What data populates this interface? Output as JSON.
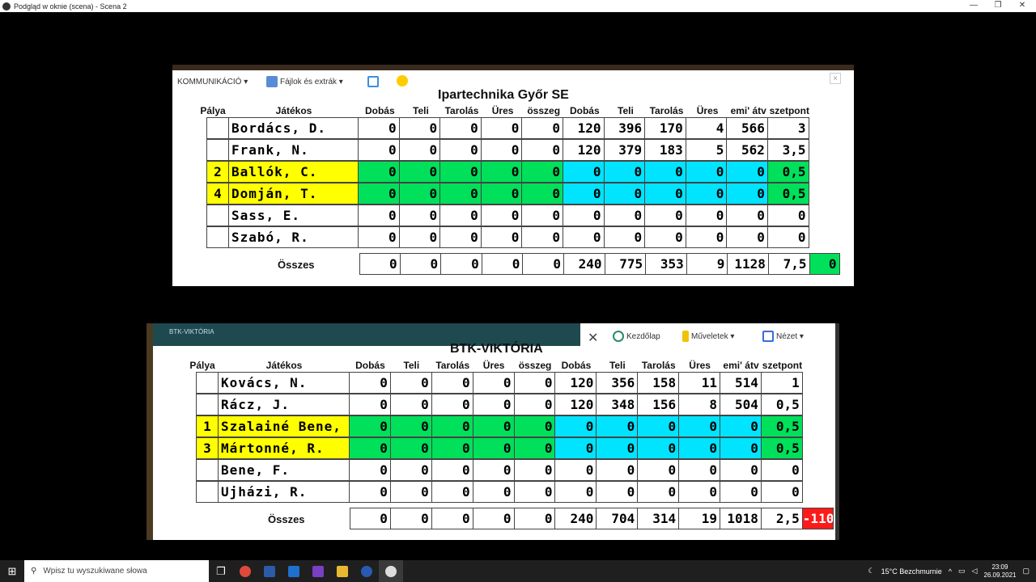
{
  "window": {
    "title": "Podgląd w oknie (scena) - Scena 2",
    "controls": [
      "—",
      "❐",
      "✕"
    ]
  },
  "toolbar1": {
    "kommunikacio": "KOMMUNIKÁCIÓ ▾",
    "fajlok": "Fájlok és extrák ▾"
  },
  "toolbar2": {
    "tab": "BTK-VIKTÓRIA",
    "kezdolap": "Kezdőlap",
    "muveletek": "Műveletek ▾",
    "nezet": "Nézet ▾"
  },
  "headers": {
    "palya": "Pálya",
    "jatekos": "Játékos",
    "cols": [
      "Dobás",
      "Teli",
      "Tarolás",
      "Üres",
      "összeg",
      "Dobás",
      "Teli",
      "Tarolás",
      "Üres",
      "emi' átv",
      "szetpont"
    ]
  },
  "team1": {
    "name": "Ipartechnika Győr SE",
    "players": [
      {
        "palya": "",
        "name": "Bordács, D.",
        "vals": [
          "0",
          "0",
          "0",
          "0",
          "0",
          "120",
          "396",
          "170",
          "4",
          "566",
          "3"
        ],
        "hl": false
      },
      {
        "palya": "",
        "name": "Frank, N.",
        "vals": [
          "0",
          "0",
          "0",
          "0",
          "0",
          "120",
          "379",
          "183",
          "5",
          "562",
          "3,5"
        ],
        "hl": false
      },
      {
        "palya": "2",
        "name": "Ballók, C.",
        "vals": [
          "0",
          "0",
          "0",
          "0",
          "0",
          "0",
          "0",
          "0",
          "0",
          "0",
          "0,5"
        ],
        "hl": true
      },
      {
        "palya": "4",
        "name": "Domján, T.",
        "vals": [
          "0",
          "0",
          "0",
          "0",
          "0",
          "0",
          "0",
          "0",
          "0",
          "0",
          "0,5"
        ],
        "hl": true
      },
      {
        "palya": "",
        "name": "Sass, E.",
        "vals": [
          "0",
          "0",
          "0",
          "0",
          "0",
          "0",
          "0",
          "0",
          "0",
          "0",
          "0"
        ],
        "hl": false
      },
      {
        "palya": "",
        "name": "Szabó, R.",
        "vals": [
          "0",
          "0",
          "0",
          "0",
          "0",
          "0",
          "0",
          "0",
          "0",
          "0",
          "0"
        ],
        "hl": false
      }
    ],
    "total_label": "Összes",
    "totals": [
      "0",
      "0",
      "0",
      "0",
      "0",
      "240",
      "775",
      "353",
      "9",
      "1128",
      "7,5"
    ],
    "diff": "0"
  },
  "team2": {
    "name": "BTK-VIKTÓRIA",
    "players": [
      {
        "palya": "",
        "name": "Kovács, N.",
        "vals": [
          "0",
          "0",
          "0",
          "0",
          "0",
          "120",
          "356",
          "158",
          "11",
          "514",
          "1"
        ],
        "hl": false
      },
      {
        "palya": "",
        "name": "Rácz, J.",
        "vals": [
          "0",
          "0",
          "0",
          "0",
          "0",
          "120",
          "348",
          "156",
          "8",
          "504",
          "0,5"
        ],
        "hl": false
      },
      {
        "palya": "1",
        "name": "Szalainé Bene,",
        "vals": [
          "0",
          "0",
          "0",
          "0",
          "0",
          "0",
          "0",
          "0",
          "0",
          "0",
          "0,5"
        ],
        "hl": true
      },
      {
        "palya": "3",
        "name": "Mártonné, R.",
        "vals": [
          "0",
          "0",
          "0",
          "0",
          "0",
          "0",
          "0",
          "0",
          "0",
          "0",
          "0,5"
        ],
        "hl": true
      },
      {
        "palya": "",
        "name": "Bene, F.",
        "vals": [
          "0",
          "0",
          "0",
          "0",
          "0",
          "0",
          "0",
          "0",
          "0",
          "0",
          "0"
        ],
        "hl": false
      },
      {
        "palya": "",
        "name": "Ujházi, R.",
        "vals": [
          "0",
          "0",
          "0",
          "0",
          "0",
          "0",
          "0",
          "0",
          "0",
          "0",
          "0"
        ],
        "hl": false
      }
    ],
    "total_label": "Összes",
    "totals": [
      "0",
      "0",
      "0",
      "0",
      "0",
      "240",
      "704",
      "314",
      "19",
      "1018",
      "2,5"
    ],
    "diff": "-110"
  },
  "taskbar": {
    "search_placeholder": "Wpisz tu wyszukiwane słowa",
    "weather": "15°C  Bezchmurnie",
    "time": "23:09",
    "date": "26.09.2021"
  },
  "colors": {
    "yellow": "#ffff00",
    "green": "#00e05a",
    "cyan": "#00e4ff",
    "red": "#ff1a1a"
  }
}
